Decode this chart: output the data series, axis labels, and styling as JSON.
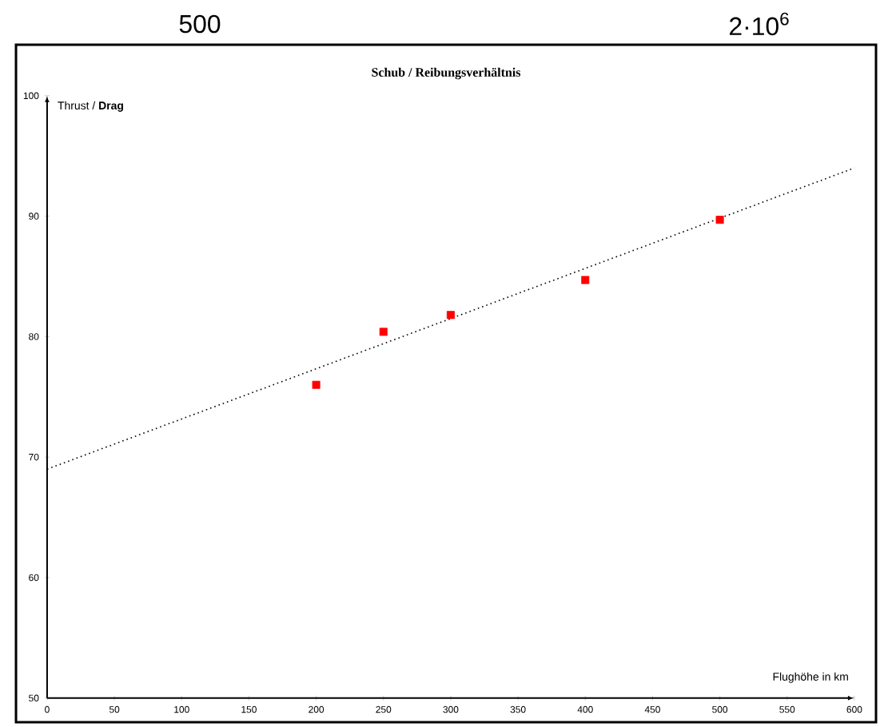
{
  "chart_data": {
    "type": "scatter",
    "title": "Schub / Reibungsverhältnis",
    "xlabel": "Flughöhe in km",
    "ylabel": "Thrust / **Drag**",
    "annotations": [
      "500",
      "2·10$^{6}$"
    ],
    "xlim": [
      0,
      600
    ],
    "ylim": [
      50,
      100
    ],
    "xticks": [
      0,
      50,
      100,
      150,
      200,
      250,
      300,
      350,
      400,
      450,
      500,
      550,
      600
    ],
    "yticks": [
      50,
      60,
      70,
      80,
      90,
      100
    ],
    "grid": false,
    "series": [
      {
        "marker": "square",
        "color": "#ff0000",
        "x": [
          200,
          250,
          300,
          400,
          500
        ],
        "values": [
          76.0,
          80.4,
          81.8,
          84.7,
          89.7
        ]
      },
      {
        "type": "line",
        "marker": "none",
        "color": "#000000",
        "line_style": "dotted",
        "x": [
          0,
          600
        ],
        "values": [
          69,
          94
        ]
      }
    ]
  }
}
